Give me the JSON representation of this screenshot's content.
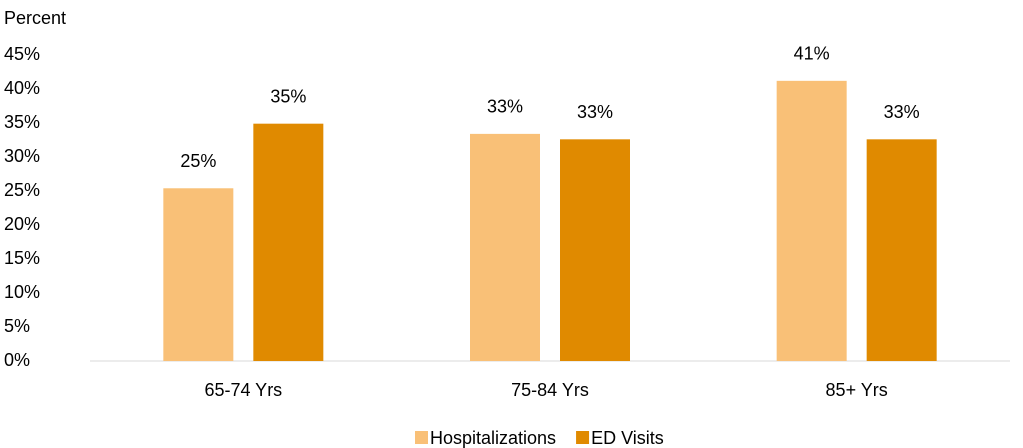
{
  "chart_data": {
    "type": "bar",
    "y_label": "Percent",
    "categories": [
      "65-74 Yrs",
      "75-84 Yrs",
      "85+ Yrs"
    ],
    "series": [
      {
        "name": "Hospitalizations",
        "color": "#f9c077",
        "values": [
          25.4,
          33.4,
          41.2
        ],
        "value_labels": [
          "25%",
          "33%",
          "41%"
        ]
      },
      {
        "name": "ED Visits",
        "color": "#e08a00",
        "values": [
          34.9,
          32.6,
          32.6
        ],
        "value_labels": [
          "35%",
          "33%",
          "33%"
        ]
      }
    ],
    "ylim": [
      0,
      45
    ],
    "yticks": [
      {
        "value": 0,
        "label": "0%"
      },
      {
        "value": 5,
        "label": "5%"
      },
      {
        "value": 10,
        "label": "10%"
      },
      {
        "value": 15,
        "label": "15%"
      },
      {
        "value": 20,
        "label": "20%"
      },
      {
        "value": 25,
        "label": "25%"
      },
      {
        "value": 30,
        "label": "30%"
      },
      {
        "value": 35,
        "label": "35%"
      },
      {
        "value": 40,
        "label": "40%"
      },
      {
        "value": 45,
        "label": "45%"
      }
    ],
    "grid": false,
    "legend": "bottom"
  }
}
